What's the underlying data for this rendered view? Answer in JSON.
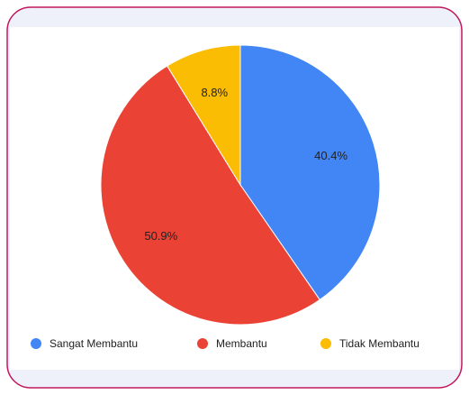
{
  "chart_data": {
    "type": "pie",
    "categories": [
      "Sangat Membantu",
      "Membantu",
      "Tidak Membantu"
    ],
    "values": [
      40.4,
      50.9,
      8.8
    ],
    "value_labels": [
      "40.4%",
      "50.9%",
      "8.8%"
    ],
    "colors": [
      "#4285f4",
      "#ea4335",
      "#fbbc04"
    ],
    "legend": "bottom"
  }
}
